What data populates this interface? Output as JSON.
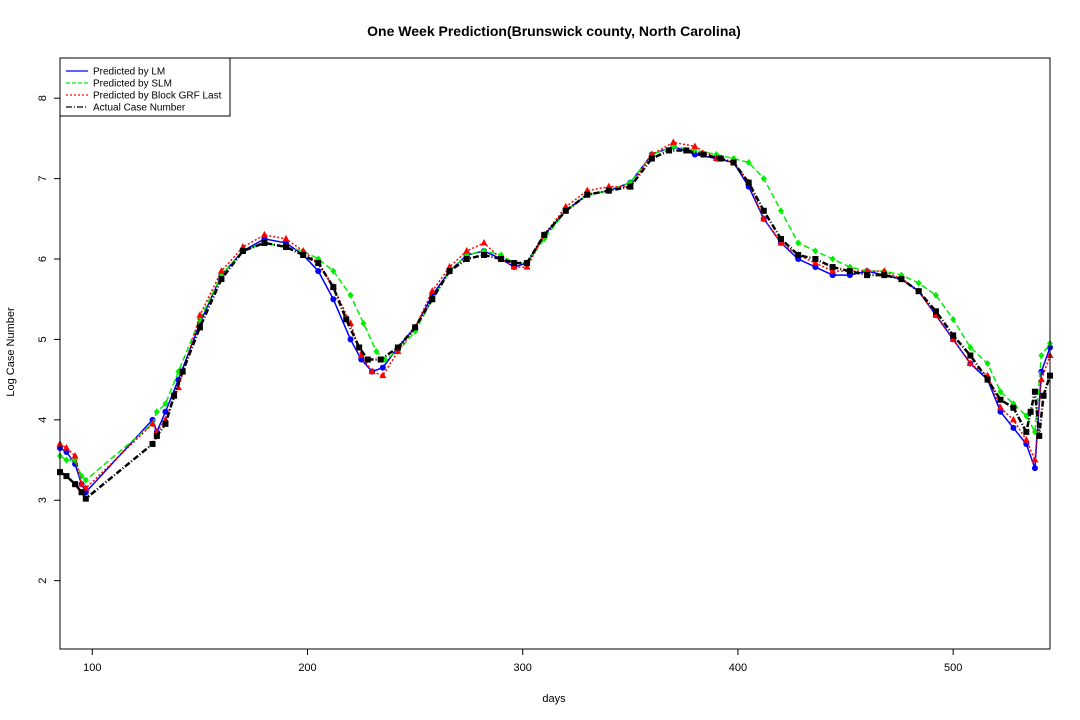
{
  "chart_data": {
    "type": "line",
    "title": "One Week Prediction(Brunswick county, North Carolina)",
    "xlabel": "days",
    "ylabel": "Log Case Number",
    "xlim": [
      85,
      545
    ],
    "ylim": [
      1.15,
      8.5
    ],
    "x_ticks": [
      100,
      200,
      300,
      400,
      500
    ],
    "y_ticks": [
      2,
      3,
      4,
      5,
      6,
      7,
      8
    ],
    "grid": false,
    "legend_position": "top-left",
    "series": [
      {
        "name": "Predicted by LM",
        "color": "#0000ff",
        "line_style": "solid",
        "marker": "circle",
        "points": [
          [
            85,
            3.65
          ],
          [
            88,
            3.6
          ],
          [
            92,
            3.45
          ],
          [
            95,
            3.2
          ],
          [
            97,
            3.1
          ],
          [
            128,
            4.0
          ],
          [
            130,
            3.85
          ],
          [
            134,
            4.1
          ],
          [
            140,
            4.5
          ],
          [
            150,
            5.2
          ],
          [
            160,
            5.8
          ],
          [
            170,
            6.1
          ],
          [
            180,
            6.25
          ],
          [
            190,
            6.2
          ],
          [
            198,
            6.05
          ],
          [
            205,
            5.85
          ],
          [
            212,
            5.5
          ],
          [
            220,
            5.0
          ],
          [
            225,
            4.75
          ],
          [
            230,
            4.6
          ],
          [
            235,
            4.65
          ],
          [
            242,
            4.9
          ],
          [
            250,
            5.15
          ],
          [
            258,
            5.55
          ],
          [
            266,
            5.85
          ],
          [
            274,
            6.05
          ],
          [
            282,
            6.1
          ],
          [
            290,
            6.0
          ],
          [
            296,
            5.9
          ],
          [
            302,
            5.95
          ],
          [
            310,
            6.3
          ],
          [
            320,
            6.6
          ],
          [
            330,
            6.8
          ],
          [
            340,
            6.85
          ],
          [
            350,
            6.95
          ],
          [
            360,
            7.3
          ],
          [
            370,
            7.4
          ],
          [
            380,
            7.3
          ],
          [
            390,
            7.25
          ],
          [
            398,
            7.2
          ],
          [
            405,
            6.9
          ],
          [
            412,
            6.5
          ],
          [
            420,
            6.2
          ],
          [
            428,
            6.0
          ],
          [
            436,
            5.9
          ],
          [
            444,
            5.8
          ],
          [
            452,
            5.8
          ],
          [
            460,
            5.85
          ],
          [
            468,
            5.8
          ],
          [
            476,
            5.75
          ],
          [
            484,
            5.6
          ],
          [
            492,
            5.3
          ],
          [
            500,
            5.0
          ],
          [
            508,
            4.7
          ],
          [
            516,
            4.5
          ],
          [
            522,
            4.1
          ],
          [
            528,
            3.9
          ],
          [
            534,
            3.7
          ],
          [
            538,
            3.4
          ],
          [
            541,
            4.6
          ],
          [
            545,
            4.9
          ]
        ]
      },
      {
        "name": "Predicted by SLM",
        "color": "#00ee00",
        "line_style": "dashed",
        "marker": "diamond",
        "points": [
          [
            85,
            3.55
          ],
          [
            88,
            3.5
          ],
          [
            92,
            3.5
          ],
          [
            95,
            3.3
          ],
          [
            97,
            3.25
          ],
          [
            128,
            3.95
          ],
          [
            130,
            4.1
          ],
          [
            134,
            4.2
          ],
          [
            140,
            4.6
          ],
          [
            150,
            5.25
          ],
          [
            160,
            5.8
          ],
          [
            170,
            6.1
          ],
          [
            180,
            6.2
          ],
          [
            190,
            6.15
          ],
          [
            198,
            6.1
          ],
          [
            205,
            6.0
          ],
          [
            212,
            5.85
          ],
          [
            220,
            5.55
          ],
          [
            226,
            5.2
          ],
          [
            232,
            4.85
          ],
          [
            236,
            4.75
          ],
          [
            242,
            4.85
          ],
          [
            250,
            5.1
          ],
          [
            258,
            5.5
          ],
          [
            266,
            5.85
          ],
          [
            274,
            6.05
          ],
          [
            282,
            6.1
          ],
          [
            290,
            6.05
          ],
          [
            296,
            5.95
          ],
          [
            302,
            5.95
          ],
          [
            310,
            6.25
          ],
          [
            320,
            6.6
          ],
          [
            330,
            6.8
          ],
          [
            340,
            6.85
          ],
          [
            350,
            6.95
          ],
          [
            360,
            7.3
          ],
          [
            370,
            7.4
          ],
          [
            380,
            7.35
          ],
          [
            390,
            7.3
          ],
          [
            398,
            7.25
          ],
          [
            405,
            7.2
          ],
          [
            412,
            7.0
          ],
          [
            420,
            6.6
          ],
          [
            428,
            6.2
          ],
          [
            436,
            6.1
          ],
          [
            444,
            6.0
          ],
          [
            452,
            5.9
          ],
          [
            460,
            5.85
          ],
          [
            468,
            5.85
          ],
          [
            476,
            5.8
          ],
          [
            484,
            5.7
          ],
          [
            492,
            5.55
          ],
          [
            500,
            5.25
          ],
          [
            508,
            4.9
          ],
          [
            516,
            4.7
          ],
          [
            522,
            4.35
          ],
          [
            528,
            4.2
          ],
          [
            534,
            4.05
          ],
          [
            538,
            3.85
          ],
          [
            541,
            4.8
          ],
          [
            545,
            4.95
          ]
        ]
      },
      {
        "name": "Predicted by Block GRF Last",
        "color": "#ff0000",
        "line_style": "dotted",
        "marker": "triangle",
        "points": [
          [
            85,
            3.7
          ],
          [
            88,
            3.65
          ],
          [
            92,
            3.55
          ],
          [
            95,
            3.2
          ],
          [
            97,
            3.15
          ],
          [
            128,
            3.95
          ],
          [
            130,
            3.85
          ],
          [
            134,
            4.0
          ],
          [
            140,
            4.4
          ],
          [
            150,
            5.3
          ],
          [
            160,
            5.85
          ],
          [
            170,
            6.15
          ],
          [
            180,
            6.3
          ],
          [
            190,
            6.25
          ],
          [
            198,
            6.1
          ],
          [
            205,
            5.95
          ],
          [
            212,
            5.65
          ],
          [
            220,
            5.2
          ],
          [
            225,
            4.8
          ],
          [
            230,
            4.6
          ],
          [
            235,
            4.55
          ],
          [
            242,
            4.85
          ],
          [
            250,
            5.15
          ],
          [
            258,
            5.6
          ],
          [
            266,
            5.9
          ],
          [
            274,
            6.1
          ],
          [
            282,
            6.2
          ],
          [
            290,
            6.0
          ],
          [
            296,
            5.9
          ],
          [
            302,
            5.9
          ],
          [
            310,
            6.3
          ],
          [
            320,
            6.65
          ],
          [
            330,
            6.85
          ],
          [
            340,
            6.9
          ],
          [
            350,
            6.9
          ],
          [
            360,
            7.3
          ],
          [
            370,
            7.45
          ],
          [
            380,
            7.4
          ],
          [
            390,
            7.25
          ],
          [
            398,
            7.2
          ],
          [
            405,
            6.95
          ],
          [
            412,
            6.5
          ],
          [
            420,
            6.2
          ],
          [
            428,
            6.05
          ],
          [
            436,
            5.95
          ],
          [
            444,
            5.85
          ],
          [
            452,
            5.85
          ],
          [
            460,
            5.85
          ],
          [
            468,
            5.85
          ],
          [
            476,
            5.75
          ],
          [
            484,
            5.6
          ],
          [
            492,
            5.3
          ],
          [
            500,
            5.0
          ],
          [
            508,
            4.7
          ],
          [
            516,
            4.55
          ],
          [
            522,
            4.15
          ],
          [
            528,
            4.0
          ],
          [
            534,
            3.75
          ],
          [
            538,
            3.5
          ],
          [
            541,
            4.5
          ],
          [
            545,
            4.8
          ]
        ]
      },
      {
        "name": "Actual Case Number",
        "color": "#000000",
        "line_style": "dashdot",
        "marker": "square",
        "points": [
          [
            85,
            3.35
          ],
          [
            88,
            3.3
          ],
          [
            92,
            3.2
          ],
          [
            95,
            3.1
          ],
          [
            97,
            3.02
          ],
          [
            128,
            3.7
          ],
          [
            130,
            3.8
          ],
          [
            134,
            3.95
          ],
          [
            138,
            4.3
          ],
          [
            142,
            4.6
          ],
          [
            150,
            5.15
          ],
          [
            160,
            5.75
          ],
          [
            170,
            6.1
          ],
          [
            180,
            6.2
          ],
          [
            190,
            6.15
          ],
          [
            198,
            6.05
          ],
          [
            205,
            5.95
          ],
          [
            212,
            5.65
          ],
          [
            218,
            5.25
          ],
          [
            224,
            4.9
          ],
          [
            228,
            4.75
          ],
          [
            234,
            4.75
          ],
          [
            242,
            4.9
          ],
          [
            250,
            5.15
          ],
          [
            258,
            5.5
          ],
          [
            266,
            5.85
          ],
          [
            274,
            6.0
          ],
          [
            282,
            6.05
          ],
          [
            290,
            6.0
          ],
          [
            296,
            5.95
          ],
          [
            302,
            5.95
          ],
          [
            310,
            6.3
          ],
          [
            320,
            6.6
          ],
          [
            330,
            6.8
          ],
          [
            340,
            6.85
          ],
          [
            350,
            6.9
          ],
          [
            360,
            7.25
          ],
          [
            368,
            7.35
          ],
          [
            376,
            7.35
          ],
          [
            384,
            7.3
          ],
          [
            392,
            7.25
          ],
          [
            398,
            7.2
          ],
          [
            405,
            6.95
          ],
          [
            412,
            6.6
          ],
          [
            420,
            6.25
          ],
          [
            428,
            6.05
          ],
          [
            436,
            6.0
          ],
          [
            444,
            5.9
          ],
          [
            452,
            5.85
          ],
          [
            460,
            5.8
          ],
          [
            468,
            5.8
          ],
          [
            476,
            5.75
          ],
          [
            484,
            5.6
          ],
          [
            492,
            5.35
          ],
          [
            500,
            5.05
          ],
          [
            508,
            4.8
          ],
          [
            516,
            4.5
          ],
          [
            522,
            4.25
          ],
          [
            528,
            4.15
          ],
          [
            534,
            3.85
          ],
          [
            536,
            4.1
          ],
          [
            538,
            4.35
          ],
          [
            540,
            3.8
          ],
          [
            542,
            4.3
          ],
          [
            545,
            4.55
          ]
        ]
      }
    ]
  }
}
